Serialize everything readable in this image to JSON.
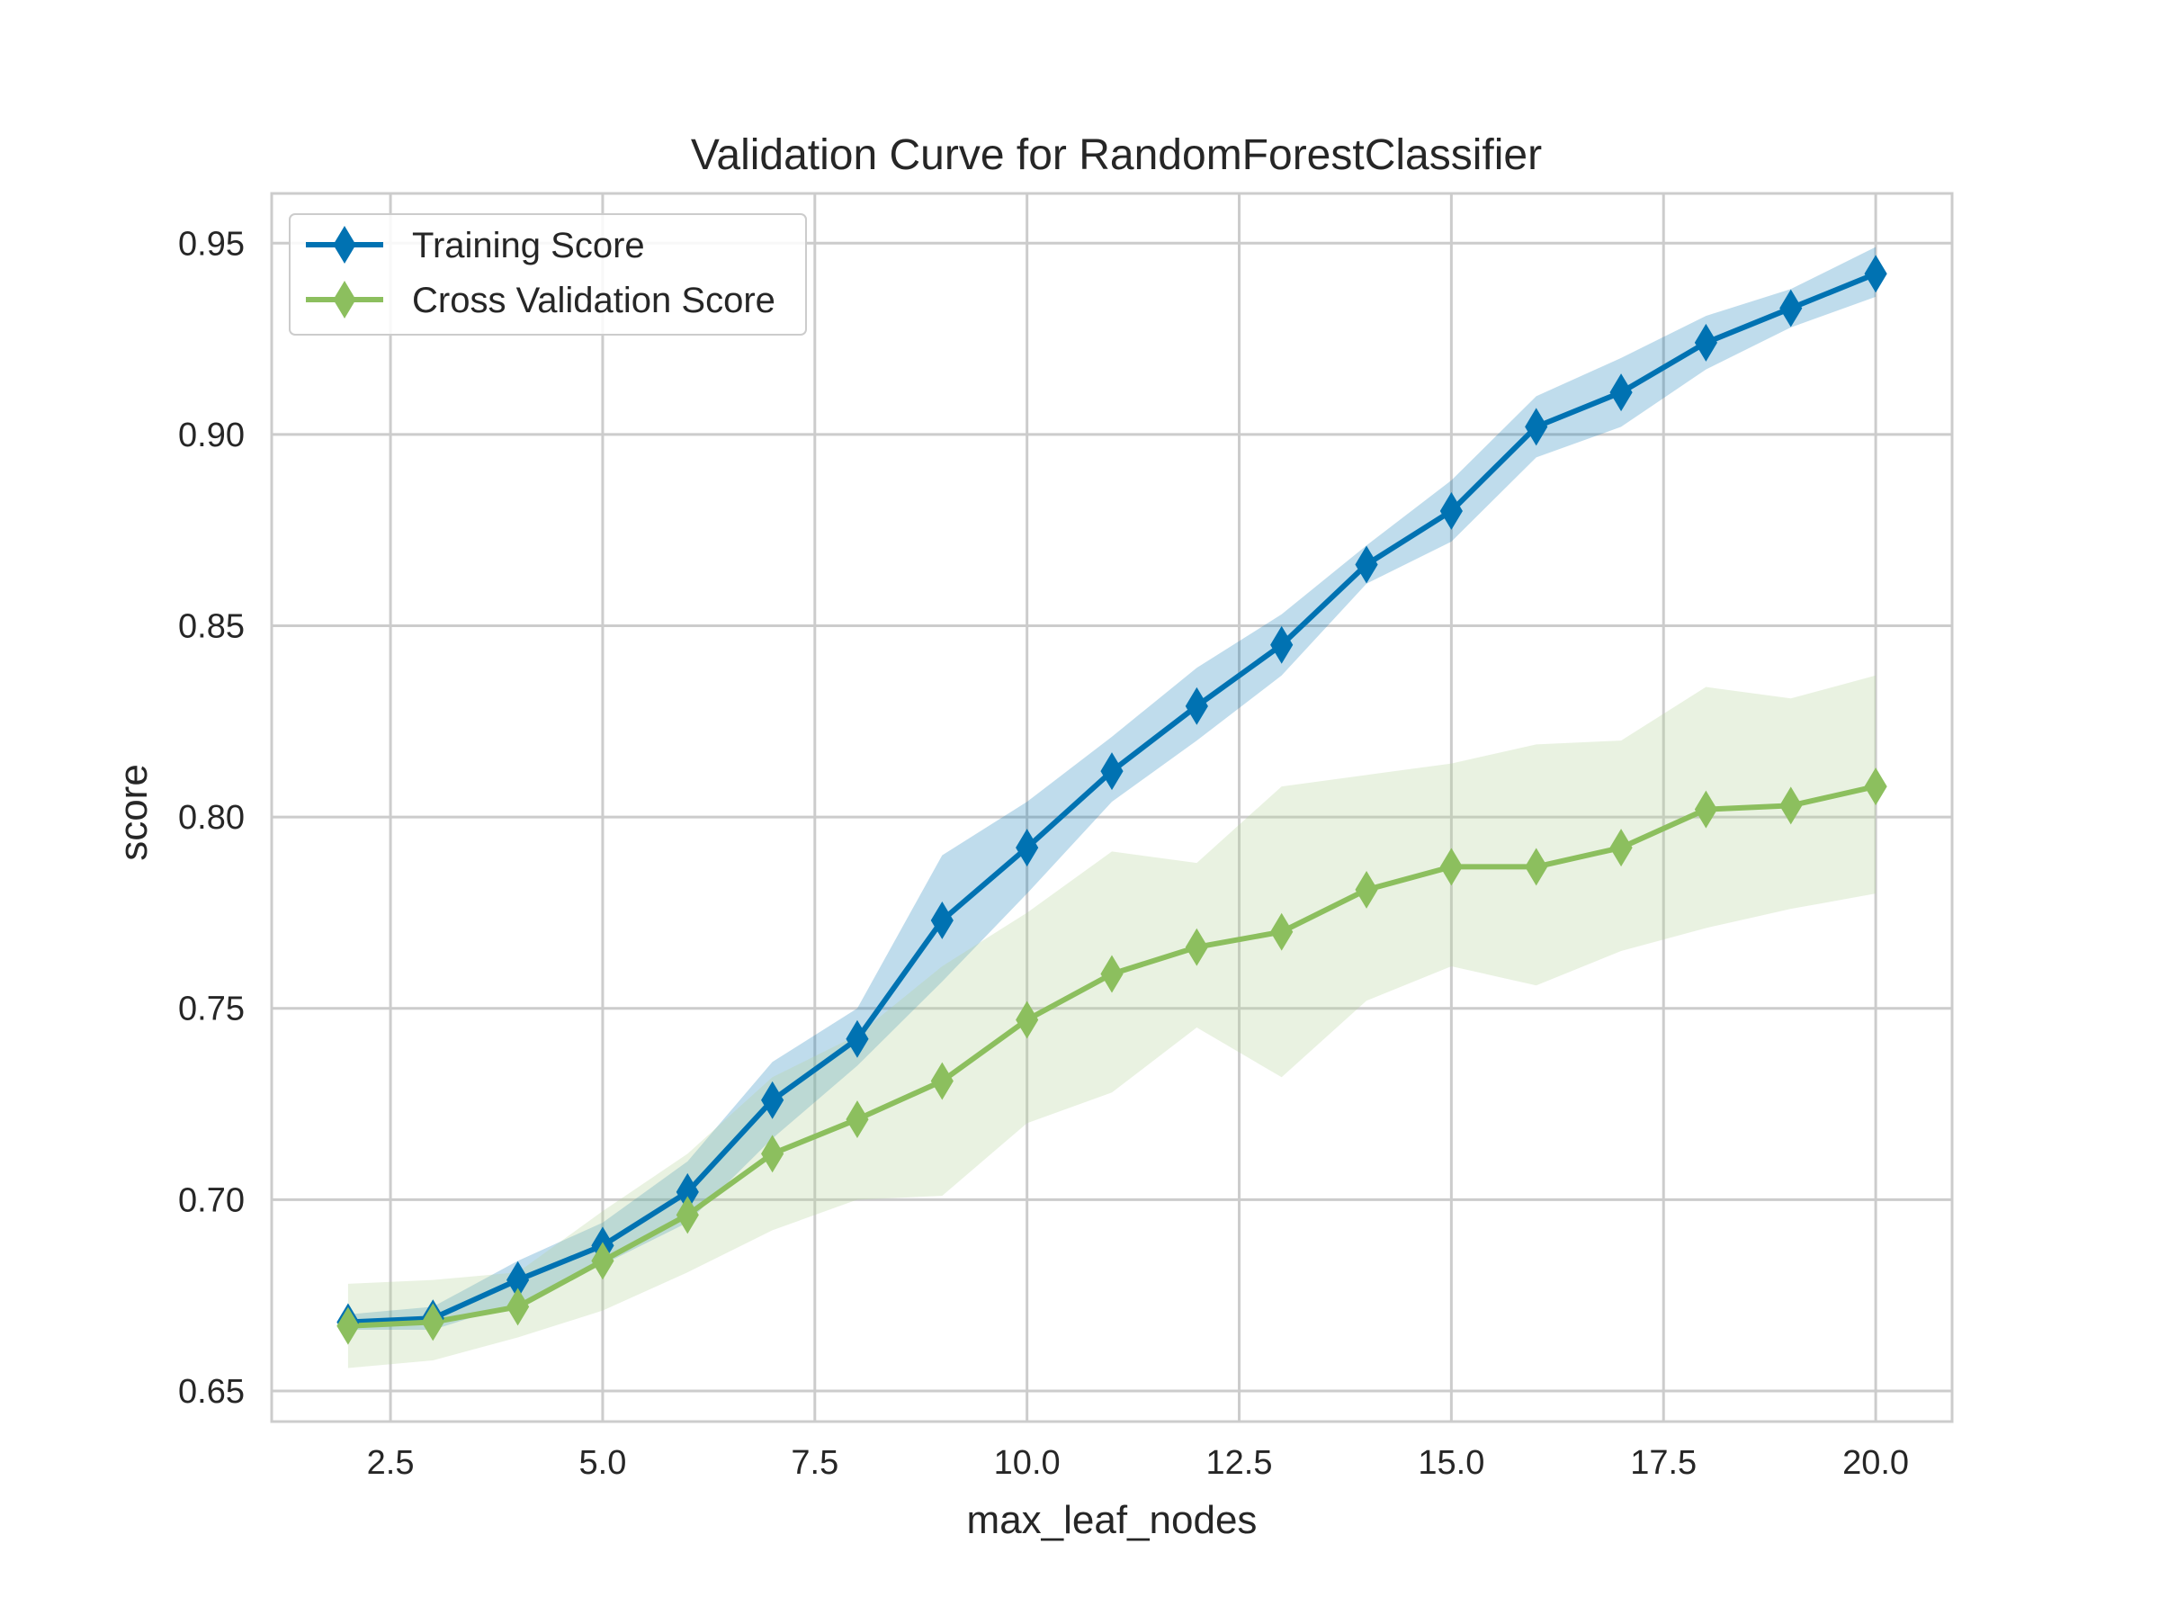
{
  "chart_data": {
    "type": "line",
    "title": "Validation Curve for RandomForestClassifier",
    "xlabel": "max_leaf_nodes",
    "ylabel": "score",
    "xlim": [
      1.1,
      20.9
    ],
    "ylim": [
      0.642,
      0.963
    ],
    "xticks": [
      2.5,
      5.0,
      7.5,
      10.0,
      12.5,
      15.0,
      17.5,
      20.0
    ],
    "xtick_labels": [
      "2.5",
      "5.0",
      "7.5",
      "10.0",
      "12.5",
      "15.0",
      "17.5",
      "20.0"
    ],
    "yticks": [
      0.65,
      0.7,
      0.75,
      0.8,
      0.85,
      0.9,
      0.95
    ],
    "ytick_labels": [
      "0.65",
      "0.70",
      "0.75",
      "0.80",
      "0.85",
      "0.90",
      "0.95"
    ],
    "grid": true,
    "legend_position": "top-left",
    "x": [
      2,
      3,
      4,
      5,
      6,
      7,
      8,
      9,
      10,
      11,
      12,
      13,
      14,
      15,
      16,
      17,
      18,
      19,
      20
    ],
    "series": [
      {
        "name": "Training Score",
        "color": "#0072B2",
        "band_color": "#0072B2",
        "values": [
          0.668,
          0.669,
          0.679,
          0.688,
          0.702,
          0.726,
          0.742,
          0.773,
          0.792,
          0.812,
          0.829,
          0.845,
          0.866,
          0.88,
          0.902,
          0.911,
          0.924,
          0.933,
          0.942
        ],
        "lower": [
          0.666,
          0.666,
          0.673,
          0.683,
          0.694,
          0.716,
          0.735,
          0.757,
          0.78,
          0.804,
          0.82,
          0.837,
          0.861,
          0.872,
          0.894,
          0.902,
          0.917,
          0.928,
          0.936
        ],
        "upper": [
          0.67,
          0.672,
          0.684,
          0.694,
          0.71,
          0.736,
          0.75,
          0.79,
          0.804,
          0.821,
          0.839,
          0.853,
          0.871,
          0.888,
          0.91,
          0.92,
          0.931,
          0.938,
          0.949
        ]
      },
      {
        "name": "Cross Validation Score",
        "color": "#8CBF5E",
        "band_color": "#B7D39B",
        "values": [
          0.667,
          0.668,
          0.672,
          0.684,
          0.696,
          0.712,
          0.721,
          0.731,
          0.747,
          0.759,
          0.766,
          0.77,
          0.781,
          0.787,
          0.787,
          0.792,
          0.802,
          0.803,
          0.808
        ],
        "lower": [
          0.656,
          0.658,
          0.664,
          0.671,
          0.681,
          0.692,
          0.7,
          0.701,
          0.72,
          0.728,
          0.745,
          0.732,
          0.752,
          0.761,
          0.756,
          0.765,
          0.771,
          0.776,
          0.78
        ],
        "upper": [
          0.678,
          0.679,
          0.681,
          0.697,
          0.712,
          0.732,
          0.743,
          0.761,
          0.775,
          0.791,
          0.788,
          0.808,
          0.811,
          0.814,
          0.819,
          0.82,
          0.834,
          0.831,
          0.837
        ]
      }
    ]
  }
}
